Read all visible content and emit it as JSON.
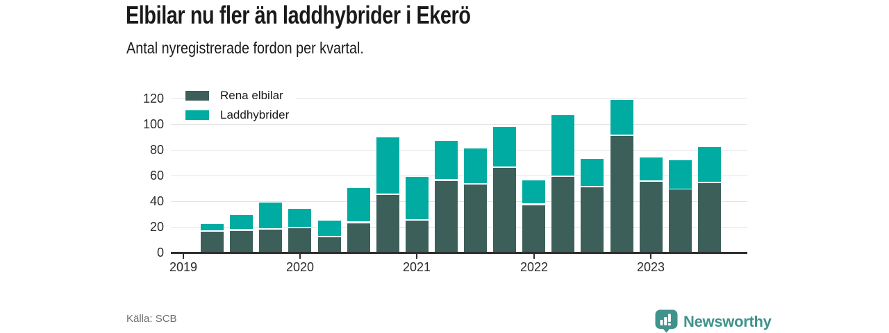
{
  "header": {
    "title": "Elbilar nu fler än laddhybrider i Ekerö",
    "subtitle": "Antal nyregistrerade fordon per kvartal."
  },
  "footer": {
    "source": "Källa: SCB",
    "brand": "Newsworthy"
  },
  "colors": {
    "rena_elbilar": "#3D5F59",
    "laddhybrider": "#00ABA2",
    "grid": "#E4E4E4",
    "axis": "#2E2E2E",
    "text": "#1A1A1A",
    "muted": "#6E6E6E",
    "brand": "#3F938C",
    "background": "#FFFFFF"
  },
  "icons": {
    "brand_icon": "newsworthy-speech-bubble-bar-chart-icon"
  },
  "chart_data": {
    "type": "bar",
    "stacked": true,
    "title": "Elbilar nu fler än laddhybrider i Ekerö",
    "subtitle": "Antal nyregistrerade fordon per kvartal.",
    "source": "Källa: SCB",
    "categories": [
      "2019 Q2",
      "2019 Q3",
      "2019 Q4",
      "2020 Q1",
      "2020 Q2",
      "2020 Q3",
      "2020 Q4",
      "2021 Q1",
      "2021 Q2",
      "2021 Q3",
      "2021 Q4",
      "2022 Q1",
      "2022 Q2",
      "2022 Q3",
      "2022 Q4",
      "2023 Q1",
      "2023 Q2",
      "2023 Q3"
    ],
    "series": [
      {
        "name": "Rena elbilar",
        "color": "#3D5F59",
        "values": [
          16,
          17,
          18,
          19,
          12,
          23,
          45,
          25,
          56,
          53,
          66,
          37,
          59,
          51,
          91,
          55,
          49,
          54
        ]
      },
      {
        "name": "Laddhybrider",
        "color": "#00ABA2",
        "values": [
          5,
          11,
          20,
          14,
          12,
          26,
          44,
          33,
          30,
          27,
          31,
          18,
          47,
          21,
          27,
          18,
          22,
          27
        ]
      }
    ],
    "stack_totals": [
      21,
      28,
      38,
      33,
      24,
      49,
      89,
      58,
      86,
      80,
      97,
      55,
      106,
      72,
      118,
      73,
      71,
      81
    ],
    "ylabel": "",
    "xlabel": "",
    "ylim": [
      0,
      120
    ],
    "yticks": [
      0,
      20,
      40,
      60,
      80,
      100,
      120
    ],
    "x_tick_labels": [
      "2019",
      "2020",
      "2021",
      "2022",
      "2023"
    ],
    "x_axis_note": "year ticks mark Q1 slots; first plotted bar is 2019 Q2",
    "grid": "horizontal",
    "legend_position": "top-left"
  }
}
